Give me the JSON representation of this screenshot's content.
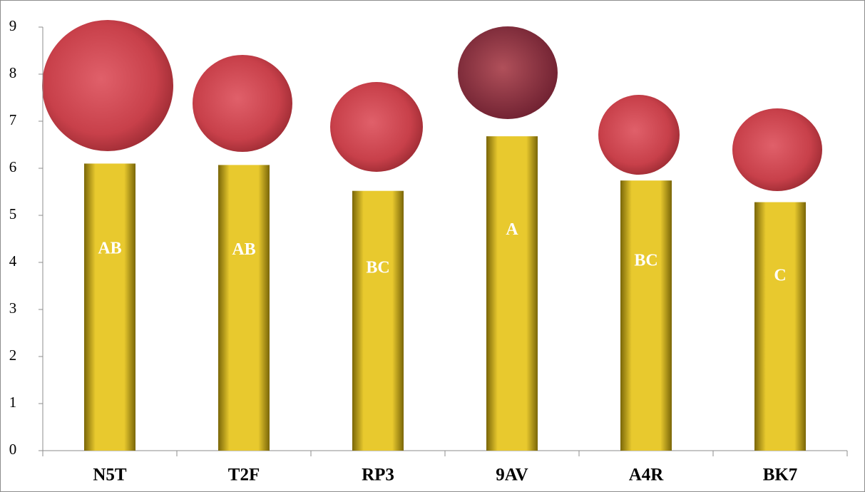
{
  "chart_data": {
    "type": "bar",
    "categories": [
      "N5T",
      "T2F",
      "RP3",
      "9AV",
      "A4R",
      "BK7"
    ],
    "values": [
      6.1,
      6.07,
      5.52,
      6.68,
      5.74,
      5.28
    ],
    "annotations": [
      "AB",
      "AB",
      "BC",
      "A",
      "BC",
      "C"
    ],
    "color": "#e8c92e",
    "ylim": [
      0,
      9
    ],
    "yticks": [
      0,
      1,
      2,
      3,
      4,
      5,
      6,
      7,
      8,
      9
    ],
    "grid": false
  }
}
